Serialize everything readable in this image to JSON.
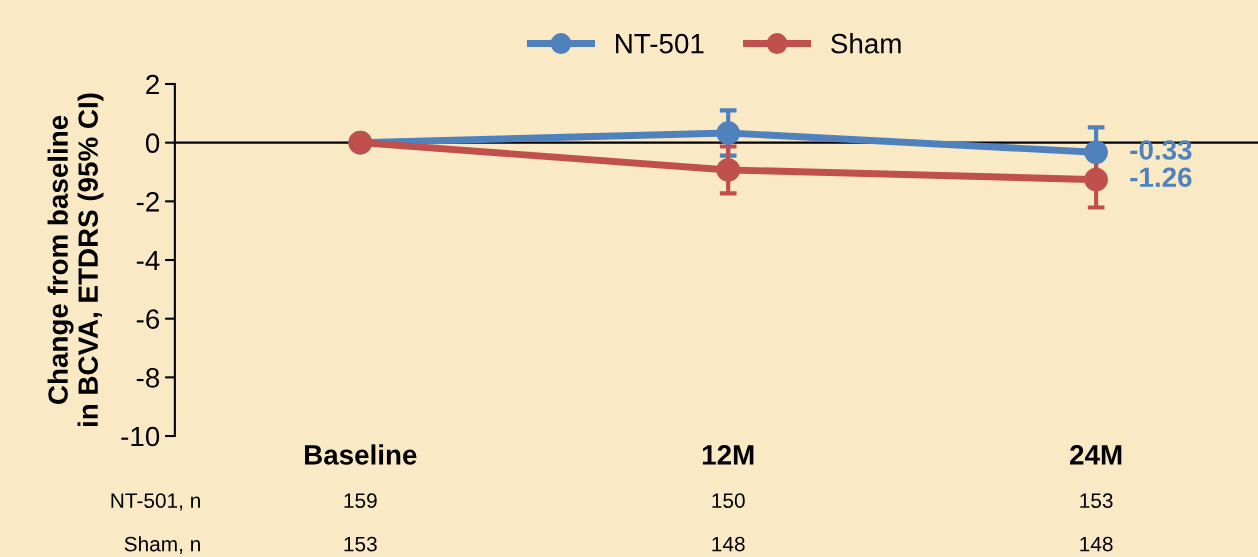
{
  "chart_data": {
    "type": "line",
    "ylabel": "Change from baseline\nin BCVA, ETDRS (95% CI)",
    "categories": [
      "Baseline",
      "12M",
      "24M"
    ],
    "series": [
      {
        "name": "NT-501",
        "color": "#4f81bd",
        "values": [
          0,
          0.33,
          -0.33
        ],
        "errors": [
          null,
          0.77,
          0.85
        ],
        "value_labels": [
          null,
          null,
          "-0.33"
        ]
      },
      {
        "name": "Sham",
        "color": "#c0504d",
        "values": [
          0,
          -0.93,
          -1.26
        ],
        "errors": [
          null,
          0.8,
          0.95
        ],
        "value_labels": [
          null,
          null,
          "-1.26"
        ]
      }
    ],
    "ylim": [
      -10,
      2
    ],
    "yticks": [
      -10,
      -8,
      -6,
      -4,
      -2,
      0,
      2
    ],
    "marker": "circle",
    "line_style": "solid",
    "legend": "top",
    "grid": false,
    "ref_lines": [
      {
        "axis": "y",
        "value": 0,
        "color": "#000000",
        "line_style": "solid"
      }
    ],
    "annotations": [
      "NT-501, n",
      "159",
      "150",
      "153",
      "Sham, n",
      "153",
      "148",
      "148"
    ]
  }
}
